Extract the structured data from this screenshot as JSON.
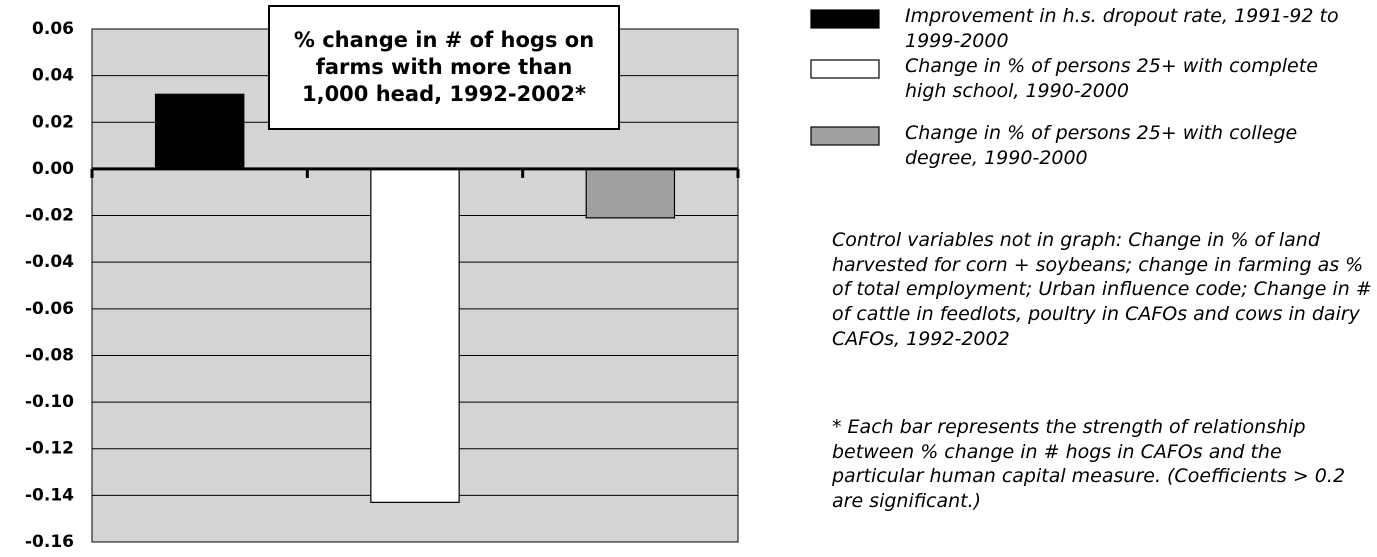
{
  "chart_data": {
    "type": "bar",
    "title": "% change in # of hogs on farms with more than 1,000 head, 1992-2002*",
    "categories": [
      null,
      null,
      null
    ],
    "series": [
      {
        "name": "Improvement in h.s. dropout rate, 1991-92 to 1999-2000",
        "color": "#000000",
        "values": [
          0.032,
          null,
          null
        ]
      },
      {
        "name": "Change in % of persons 25+ with complete high school, 1990-2000",
        "color": "#ffffff",
        "values": [
          null,
          -0.143,
          null
        ]
      },
      {
        "name": "Change in % of persons 25+ with college degree, 1990-2000",
        "color": "#a0a0a0",
        "values": [
          null,
          null,
          -0.021
        ]
      }
    ],
    "ylim": [
      -0.16,
      0.06
    ],
    "yticks": [
      {
        "value": 0.06,
        "label": "0.06"
      },
      {
        "value": 0.04,
        "label": "0.04"
      },
      {
        "value": 0.02,
        "label": "0.02"
      },
      {
        "value": 0,
        "label": "0.00"
      },
      {
        "value": -0.02,
        "label": "-0.02"
      },
      {
        "value": -0.04,
        "label": "-0.04"
      },
      {
        "value": -0.06,
        "label": "-0.06"
      },
      {
        "value": -0.08,
        "label": "-0.08"
      },
      {
        "value": -0.1,
        "label": "-0.10"
      },
      {
        "value": -0.12,
        "label": "-0.12"
      },
      {
        "value": -0.14,
        "label": "-0.14"
      },
      {
        "value": -0.16,
        "label": "-0.16"
      }
    ],
    "grid": true,
    "notes": [
      "Control variables not in graph: Change in % of land harvested for corn + soybeans; change in farming as % of total employment; Urban influence code; Change in # of cattle in feedlots, poultry in CAFOs and cows in dairy CAFOs, 1992-2002",
      "* Each bar represents the strength of relationship between % change in # hogs in CAFOs and the particular human capital measure. (Coefficients > 0.2 are significant.)"
    ]
  }
}
